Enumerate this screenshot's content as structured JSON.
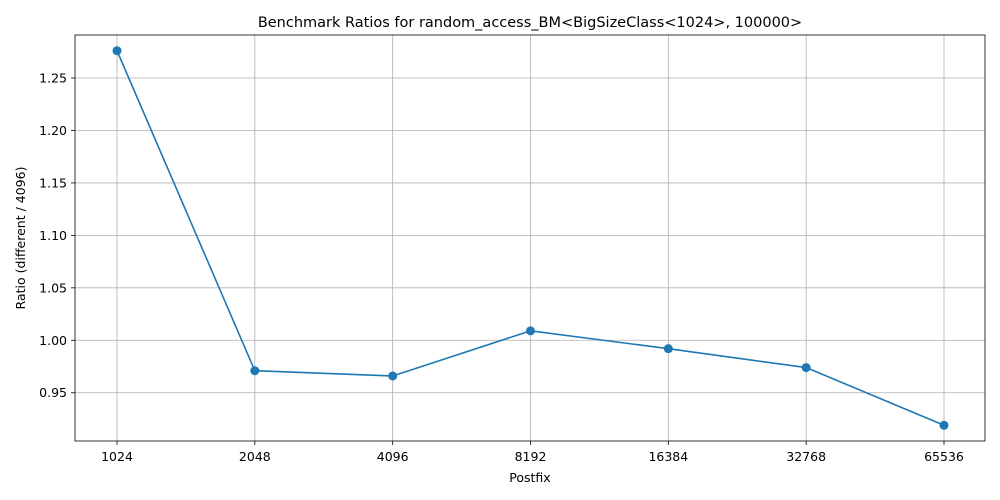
{
  "chart_data": {
    "type": "line",
    "title": "Benchmark Ratios for random_access_BM<BigSizeClass<1024>, 100000>",
    "xlabel": "Postfix",
    "ylabel": "Ratio (different / 4096)",
    "categories": [
      "1024",
      "2048",
      "4096",
      "8192",
      "16384",
      "32768",
      "65536"
    ],
    "values": [
      1.276,
      0.971,
      0.966,
      1.009,
      0.992,
      0.974,
      0.919
    ],
    "yticks": [
      0.95,
      1.0,
      1.05,
      1.1,
      1.15,
      1.2,
      1.25
    ],
    "ytick_labels": [
      "0.95",
      "1.00",
      "1.05",
      "1.10",
      "1.15",
      "1.20",
      "1.25"
    ],
    "ylim": [
      0.904,
      1.291
    ],
    "grid": true,
    "line_color": "#1f77b4",
    "marker": "circle"
  }
}
